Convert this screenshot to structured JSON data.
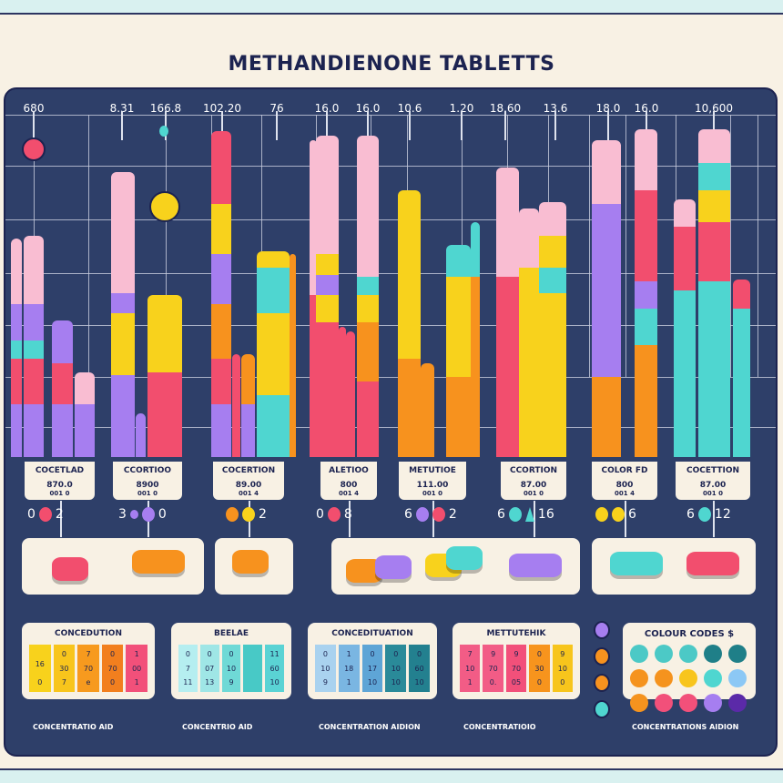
{
  "header": {
    "title": "METHANDIENONE TABLETTS"
  },
  "colors": {
    "pink": "#f9bdd2",
    "purple": "#a67ef0",
    "teal": "#4fd6d0",
    "red": "#f24e6e",
    "yellow": "#f8d21c",
    "orange": "#f7921e",
    "navy": "#2e3f69",
    "cream": "#f8f1e4"
  },
  "chart_data": {
    "type": "bar",
    "stacked": true,
    "title": "METHANDIENONE TABLETTS",
    "xlabel": "",
    "ylabel": "",
    "ylim": [
      0,
      100
    ],
    "grid": true,
    "top_labels": [
      "680",
      "8.31",
      "166.8",
      "102.20",
      "76",
      "16.0",
      "16.0",
      "10.6",
      "1.20",
      "18.60",
      "13.6",
      "18.0",
      "16.0",
      "10,600"
    ],
    "bars": [
      [
        [
          "purple",
          14.4
        ],
        [
          "red",
          26.8
        ],
        [
          "teal",
          31.8
        ],
        [
          "purple",
          41.7
        ],
        [
          "pink",
          59.6
        ]
      ],
      [
        [
          "purple",
          14.4
        ],
        [
          "red",
          26.8
        ],
        [
          "teal",
          31.8
        ],
        [
          "purple",
          41.7
        ],
        [
          "pink",
          60.3
        ]
      ],
      [
        [
          "purple",
          14.4
        ],
        [
          "red",
          25.6
        ],
        [
          "purple",
          37.2
        ]
      ],
      [
        [
          "purple",
          14.4
        ],
        [
          "pink",
          23.1
        ]
      ],
      [
        [
          "purple",
          22.3
        ],
        [
          "yellow",
          39.2
        ],
        [
          "purple",
          44.7
        ],
        [
          "pink",
          77.7
        ]
      ],
      [
        [
          "purple",
          11.9
        ]
      ],
      [
        [
          "red",
          23.1
        ],
        [
          "yellow",
          44.2
        ]
      ],
      [
        [
          "purple",
          14.4
        ],
        [
          "red",
          26.8
        ],
        [
          "orange",
          41.7
        ],
        [
          "purple",
          55.3
        ],
        [
          "yellow",
          69
        ],
        [
          "red",
          88.8
        ]
      ],
      [
        [
          "red",
          28
        ]
      ],
      [
        [
          "purple",
          14.4
        ],
        [
          "orange",
          28
        ]
      ],
      [
        [
          "teal",
          16.9
        ],
        [
          "yellow",
          39.2
        ],
        [
          "teal",
          51.6
        ],
        [
          "yellow",
          56.1
        ]
      ],
      [
        [
          "orange",
          55.3
        ]
      ],
      [
        [
          "red",
          44.2
        ],
        [
          "pink",
          86.4
        ]
      ],
      [
        [
          "red",
          36.7
        ],
        [
          "yellow",
          44.2
        ],
        [
          "purple",
          49.6
        ],
        [
          "yellow",
          55.3
        ],
        [
          "pink",
          87.6
        ]
      ],
      [
        [
          "red",
          35.5
        ]
      ],
      [
        [
          "red",
          34.2
        ]
      ],
      [
        [
          "red",
          20.6
        ],
        [
          "orange",
          36.7
        ],
        [
          "yellow",
          44.2
        ],
        [
          "teal",
          49.1
        ],
        [
          "pink",
          87.6
        ]
      ],
      [
        [
          "orange",
          26.8
        ],
        [
          "yellow",
          72.7
        ]
      ],
      [
        [
          "orange",
          25.6
        ]
      ],
      [
        [
          "orange",
          21.8
        ],
        [
          "yellow",
          49.1
        ],
        [
          "teal",
          57.8
        ]
      ],
      [
        [
          "orange",
          49.1
        ],
        [
          "teal",
          64
        ]
      ],
      [
        [
          "red",
          49.1
        ],
        [
          "pink",
          78.9
        ]
      ],
      [
        [
          "yellow",
          51.6
        ],
        [
          "pink",
          67.7
        ]
      ],
      [
        [
          "yellow",
          44.7
        ],
        [
          "teal",
          51.6
        ],
        [
          "yellow",
          60.3
        ],
        [
          "pink",
          69.5
        ]
      ],
      [
        [
          "orange",
          21.8
        ],
        [
          "purple",
          69
        ],
        [
          "pink",
          86.4
        ]
      ],
      [
        [
          "orange",
          30.5
        ],
        [
          "teal",
          40.4
        ],
        [
          "purple",
          47.9
        ],
        [
          "red",
          72.7
        ],
        [
          "pink",
          89.3
        ]
      ],
      [
        [
          "teal",
          45.4
        ],
        [
          "red",
          62.8
        ],
        [
          "pink",
          70.2
        ]
      ],
      [
        [
          "teal",
          47.9
        ],
        [
          "red",
          64
        ],
        [
          "yellow",
          72.7
        ],
        [
          "teal",
          80.1
        ],
        [
          "pink",
          89.3
        ]
      ],
      [
        [
          "teal",
          40.4
        ],
        [
          "red",
          48.4
        ]
      ]
    ]
  },
  "label_boxes": [
    {
      "title": "COCETLAD",
      "value": "870.0",
      "sub": "001 0"
    },
    {
      "title": "CCORTIOO",
      "value": "8900",
      "sub": "001 0"
    },
    {
      "title": "COCERTION",
      "value": "89.00",
      "sub": "001 4"
    },
    {
      "title": "ALETIOO",
      "value": "800",
      "sub": "001 4"
    },
    {
      "title": "METUTIOE",
      "value": "111.00",
      "sub": "001 0"
    },
    {
      "title": "CCORTION",
      "value": "87.00",
      "sub": "001 0"
    },
    {
      "title": "COLOR FD",
      "value": "800",
      "sub": "001 4"
    },
    {
      "title": "COCETTION",
      "value": "87.00",
      "sub": "001 0"
    }
  ],
  "dot_rows": [
    [
      "0",
      "@red",
      "2"
    ],
    [
      "3",
      "@purple-s",
      "@purple",
      "0"
    ],
    [
      "@orange",
      "@yellow",
      "2"
    ],
    [
      "0",
      "@red",
      "8"
    ],
    [
      "6",
      "@purple",
      "@red",
      "2"
    ],
    [
      "6",
      "@teal",
      "@teal-tri",
      "16"
    ],
    [
      "@yellow",
      "@yellow",
      "6"
    ],
    [
      "6",
      "@teal",
      "12"
    ]
  ],
  "tables": [
    {
      "title": "CONCEDUTION",
      "caption": "CONCENTRATIO AID",
      "cols": [
        [
          "",
          "16",
          "0"
        ],
        [
          "0",
          "30",
          "7"
        ],
        [
          "7",
          "70",
          "e"
        ],
        [
          "0",
          "70",
          "0"
        ],
        [
          "1",
          "00",
          "1"
        ]
      ]
    },
    {
      "title": "BEELAE",
      "caption": "CONCENTRIO AID",
      "cols": [
        [
          "0",
          "7",
          "11"
        ],
        [
          "0",
          "07",
          "13"
        ],
        [
          "0",
          "10",
          "9"
        ],
        [
          "",
          "",
          ""
        ],
        [
          "11",
          "60",
          "10"
        ]
      ]
    },
    {
      "title": "CONCEDITUATION",
      "caption": "CONCENTRATION AIDION",
      "cols": [
        [
          "0",
          "10",
          "9"
        ],
        [
          "1",
          "18",
          "1"
        ],
        [
          "0",
          "17",
          "10"
        ],
        [
          "0",
          "10",
          "10"
        ],
        [
          "0",
          "60",
          "10"
        ]
      ]
    },
    {
      "title": "METTUTEHIK",
      "caption": "CONCENTRATIOIO",
      "cols": [
        [
          "7",
          "10",
          "1"
        ],
        [
          "9",
          "70",
          "0."
        ],
        [
          "9",
          "70",
          "05"
        ],
        [
          "0",
          "30",
          "0"
        ],
        [
          "9",
          "10",
          "0"
        ]
      ]
    }
  ],
  "colour_codes": {
    "title": "COLOUR CODES $",
    "caption": "CONCENTRATIONS AIDION",
    "dots": [
      "#4cc9c6",
      "#4cc9c6",
      "#4cc9c6",
      "#1f7f88",
      "#1f7f88",
      "#f5931e",
      "#f5931e",
      "#f8c51c",
      "#4fd6d0",
      "#8cc8f5",
      "#f5931e",
      "#f2507a",
      "#f2507a",
      "#a67ef0",
      "#5b2aa8"
    ]
  }
}
